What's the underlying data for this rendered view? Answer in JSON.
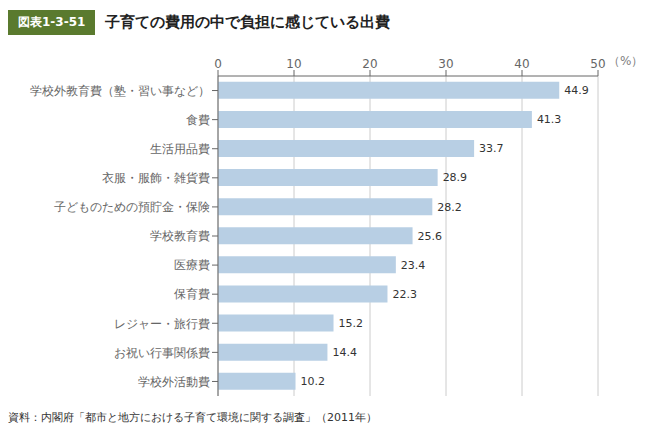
{
  "chart_data": {
    "type": "bar",
    "orientation": "horizontal",
    "title": "子育ての費用の中で負担に感じている出費",
    "annotations": [
      "図表1-3-51",
      "資料：内閣府「都市と地方における子育て環境に関する調査」（2011年）"
    ],
    "xlabel": "（%）",
    "categories": [
      "学校外教育費（塾・習い事など）",
      "食費",
      "生活用品費",
      "衣服・服飾・雑貨費",
      "子どものための預貯金・保険",
      "学校教育費",
      "医療費",
      "保育費",
      "レジャー・旅行費",
      "お祝い行事関係費",
      "学校外活動費"
    ],
    "values": [
      44.9,
      41.3,
      33.7,
      28.9,
      28.2,
      25.6,
      23.4,
      22.3,
      15.2,
      14.4,
      10.2
    ],
    "color": "#b8cfe4",
    "data_labels": true,
    "xlim": [
      0,
      50
    ],
    "xticks": [
      0,
      10,
      20,
      30,
      40,
      50
    ],
    "grid": true
  }
}
